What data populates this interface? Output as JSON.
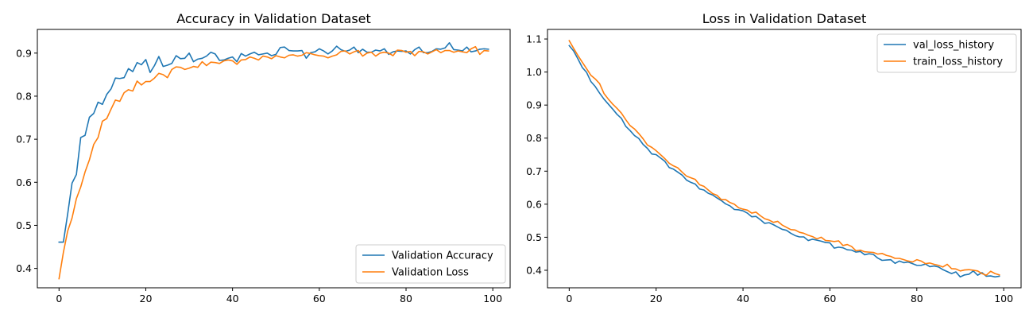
{
  "colors": {
    "blue": "#1f77b4",
    "orange": "#ff7f0e"
  },
  "chart_data": [
    {
      "type": "line",
      "title": "Accuracy in Validation Dataset",
      "xlabel": "",
      "ylabel": "",
      "xlim": [
        -5,
        104
      ],
      "ylim": [
        0.355,
        0.955
      ],
      "xticks": [
        0,
        20,
        40,
        60,
        80,
        100
      ],
      "xtick_labels": [
        "0",
        "20",
        "40",
        "60",
        "80",
        "100"
      ],
      "yticks": [
        0.4,
        0.5,
        0.6,
        0.7,
        0.8,
        0.9
      ],
      "ytick_labels": [
        "0.4",
        "0.5",
        "0.6",
        "0.7",
        "0.8",
        "0.9"
      ],
      "grid": false,
      "legend": "lower-right",
      "series": [
        {
          "name": "Validation Accuracy",
          "color": "#1f77b4",
          "y": [
            0.461,
            0.461,
            0.527,
            0.598,
            0.618,
            0.704,
            0.709,
            0.751,
            0.76,
            0.786,
            0.781,
            0.804,
            0.817,
            0.842,
            0.841,
            0.843,
            0.864,
            0.857,
            0.878,
            0.873,
            0.885,
            0.855,
            0.871,
            0.892,
            0.869,
            0.872,
            0.876,
            0.894,
            0.887,
            0.888,
            0.9,
            0.88,
            0.886,
            0.888,
            0.893,
            0.902,
            0.898,
            0.883,
            0.884,
            0.888,
            0.891,
            0.88,
            0.899,
            0.893,
            0.898,
            0.902,
            0.896,
            0.898,
            0.9,
            0.894,
            0.897,
            0.913,
            0.914,
            0.906,
            0.905,
            0.905,
            0.906,
            0.888,
            0.901,
            0.903,
            0.91,
            0.905,
            0.898,
            0.905,
            0.916,
            0.908,
            0.904,
            0.907,
            0.914,
            0.901,
            0.909,
            0.902,
            0.902,
            0.907,
            0.905,
            0.91,
            0.897,
            0.903,
            0.905,
            0.904,
            0.905,
            0.898,
            0.908,
            0.914,
            0.901,
            0.901,
            0.904,
            0.91,
            0.909,
            0.912,
            0.924,
            0.908,
            0.907,
            0.905,
            0.914,
            0.903,
            0.905,
            0.909,
            0.91,
            0.909
          ]
        },
        {
          "name": "Validation Loss",
          "color": "#ff7f0e",
          "y": [
            0.376,
            0.437,
            0.487,
            0.517,
            0.562,
            0.589,
            0.624,
            0.652,
            0.688,
            0.704,
            0.742,
            0.748,
            0.77,
            0.791,
            0.788,
            0.808,
            0.815,
            0.812,
            0.835,
            0.826,
            0.834,
            0.834,
            0.842,
            0.853,
            0.85,
            0.843,
            0.862,
            0.868,
            0.867,
            0.862,
            0.865,
            0.869,
            0.867,
            0.88,
            0.871,
            0.879,
            0.878,
            0.876,
            0.882,
            0.884,
            0.882,
            0.874,
            0.884,
            0.885,
            0.891,
            0.888,
            0.884,
            0.893,
            0.891,
            0.887,
            0.894,
            0.891,
            0.889,
            0.895,
            0.896,
            0.893,
            0.895,
            0.901,
            0.899,
            0.896,
            0.894,
            0.893,
            0.889,
            0.893,
            0.896,
            0.904,
            0.905,
            0.898,
            0.903,
            0.906,
            0.893,
            0.9,
            0.902,
            0.893,
            0.9,
            0.902,
            0.9,
            0.894,
            0.907,
            0.906,
            0.902,
            0.904,
            0.894,
            0.904,
            0.903,
            0.898,
            0.903,
            0.908,
            0.901,
            0.906,
            0.906,
            0.902,
            0.905,
            0.903,
            0.901,
            0.91,
            0.915,
            0.897,
            0.906,
            0.905
          ]
        }
      ]
    },
    {
      "type": "line",
      "title": "Loss in Validation Dataset",
      "xlabel": "",
      "ylabel": "",
      "xlim": [
        -5,
        104
      ],
      "ylim": [
        0.347,
        1.129
      ],
      "xticks": [
        0,
        20,
        40,
        60,
        80,
        100
      ],
      "xtick_labels": [
        "0",
        "20",
        "40",
        "60",
        "80",
        "100"
      ],
      "yticks": [
        0.4,
        0.5,
        0.6,
        0.7,
        0.8,
        0.9,
        1.0,
        1.1
      ],
      "ytick_labels": [
        "0.4",
        "0.5",
        "0.6",
        "0.7",
        "0.8",
        "0.9",
        "1.0",
        "1.1"
      ],
      "grid": false,
      "legend": "top-right",
      "series": [
        {
          "name": "val_loss_history",
          "color": "#1f77b4",
          "y": [
            1.08,
            1.064,
            1.04,
            1.014,
            0.999,
            0.971,
            0.956,
            0.936,
            0.918,
            0.903,
            0.888,
            0.872,
            0.86,
            0.836,
            0.823,
            0.808,
            0.799,
            0.781,
            0.769,
            0.752,
            0.75,
            0.74,
            0.73,
            0.711,
            0.706,
            0.697,
            0.688,
            0.673,
            0.666,
            0.661,
            0.646,
            0.643,
            0.633,
            0.628,
            0.619,
            0.611,
            0.601,
            0.595,
            0.584,
            0.583,
            0.58,
            0.573,
            0.562,
            0.563,
            0.553,
            0.542,
            0.544,
            0.538,
            0.531,
            0.524,
            0.521,
            0.512,
            0.505,
            0.501,
            0.501,
            0.49,
            0.494,
            0.491,
            0.488,
            0.484,
            0.483,
            0.467,
            0.47,
            0.468,
            0.462,
            0.461,
            0.455,
            0.457,
            0.447,
            0.45,
            0.448,
            0.437,
            0.43,
            0.431,
            0.432,
            0.421,
            0.428,
            0.423,
            0.425,
            0.42,
            0.415,
            0.415,
            0.419,
            0.411,
            0.413,
            0.41,
            0.402,
            0.396,
            0.39,
            0.395,
            0.38,
            0.386,
            0.388,
            0.398,
            0.385,
            0.393,
            0.382,
            0.383,
            0.38,
            0.382
          ]
        },
        {
          "name": "train_loss_history",
          "color": "#ff7f0e",
          "y": [
            1.095,
            1.072,
            1.05,
            1.03,
            1.01,
            0.99,
            0.979,
            0.965,
            0.935,
            0.918,
            0.903,
            0.89,
            0.876,
            0.856,
            0.838,
            0.828,
            0.814,
            0.798,
            0.779,
            0.772,
            0.762,
            0.75,
            0.738,
            0.724,
            0.716,
            0.71,
            0.697,
            0.685,
            0.68,
            0.675,
            0.659,
            0.654,
            0.643,
            0.632,
            0.627,
            0.614,
            0.614,
            0.605,
            0.6,
            0.589,
            0.585,
            0.582,
            0.573,
            0.576,
            0.565,
            0.556,
            0.552,
            0.545,
            0.548,
            0.537,
            0.53,
            0.523,
            0.522,
            0.515,
            0.512,
            0.506,
            0.502,
            0.495,
            0.5,
            0.49,
            0.489,
            0.487,
            0.489,
            0.475,
            0.478,
            0.472,
            0.459,
            0.461,
            0.456,
            0.455,
            0.454,
            0.449,
            0.451,
            0.445,
            0.442,
            0.436,
            0.436,
            0.432,
            0.428,
            0.425,
            0.432,
            0.428,
            0.42,
            0.422,
            0.418,
            0.415,
            0.41,
            0.418,
            0.405,
            0.404,
            0.398,
            0.401,
            0.402,
            0.4,
            0.398,
            0.39,
            0.385,
            0.397,
            0.39,
            0.386
          ]
        }
      ]
    }
  ]
}
